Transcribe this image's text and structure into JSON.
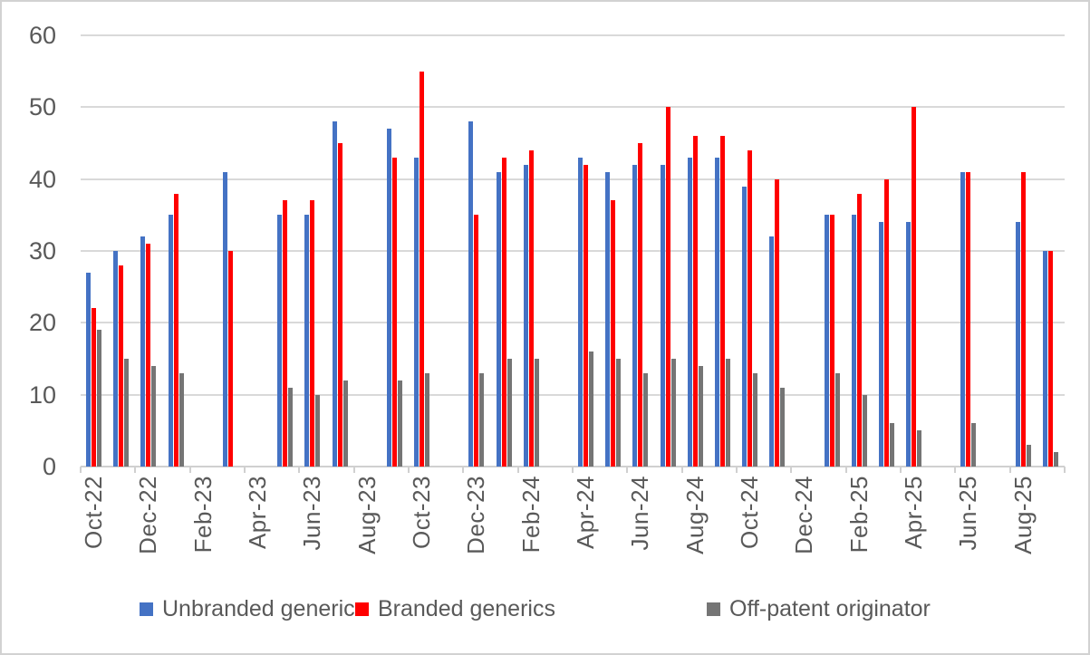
{
  "chart_data": {
    "type": "bar",
    "title": "",
    "grid": true,
    "legend_position": "bottom",
    "y_axis": {
      "min": 0,
      "max": 60,
      "tick_interval": 10,
      "tick_labels": [
        "0",
        "10",
        "20",
        "30",
        "40",
        "50",
        "60"
      ]
    },
    "x_axis": {
      "tick_labels": [
        "Oct-22",
        "Dec-22",
        "Feb-23",
        "Apr-23",
        "Jun-23",
        "Aug-23",
        "Oct-23",
        "Dec-23",
        "Feb-24",
        "Apr-24",
        "Jun-24",
        "Aug-24",
        "Oct-24",
        "Dec-24",
        "Feb-25",
        "Apr-25",
        "Jun-25",
        "Aug-25"
      ]
    },
    "categories": [
      "Oct-22",
      "Nov-22",
      "Dec-22",
      "Jan-23",
      "Feb-23",
      "Mar-23",
      "Apr-23",
      "May-23",
      "Jun-23",
      "Jul-23",
      "Aug-23",
      "Sep-23",
      "Oct-23",
      "Nov-23",
      "Dec-23",
      "Jan-24",
      "Feb-24",
      "Mar-24",
      "Apr-24",
      "May-24",
      "Jun-24",
      "Jul-24",
      "Aug-24",
      "Sep-24",
      "Oct-24",
      "Nov-24",
      "Dec-24",
      "Jan-25",
      "Feb-25",
      "Mar-25",
      "Apr-25",
      "May-25",
      "Jun-25",
      "Jul-25",
      "Aug-25",
      "Sep-25"
    ],
    "series": [
      {
        "name": "Unbranded generics",
        "color": "#4472C4",
        "values": [
          27,
          30,
          32,
          35,
          null,
          41,
          null,
          35,
          35,
          48,
          null,
          47,
          43,
          null,
          48,
          41,
          42,
          null,
          43,
          41,
          42,
          42,
          43,
          43,
          39,
          32,
          null,
          35,
          35,
          34,
          34,
          null,
          41,
          null,
          34,
          30
        ]
      },
      {
        "name": "Branded generics",
        "color": "#FF0000",
        "values": [
          22,
          28,
          31,
          38,
          null,
          30,
          null,
          37,
          37,
          45,
          null,
          43,
          55,
          null,
          35,
          43,
          44,
          null,
          42,
          37,
          45,
          50,
          46,
          46,
          44,
          40,
          null,
          35,
          38,
          40,
          50,
          null,
          41,
          null,
          41,
          30
        ]
      },
      {
        "name": "Off-patent originator",
        "color": "#757575",
        "values": [
          19,
          15,
          14,
          13,
          null,
          null,
          null,
          11,
          10,
          12,
          null,
          12,
          13,
          null,
          13,
          15,
          15,
          null,
          16,
          15,
          13,
          15,
          14,
          15,
          13,
          11,
          null,
          13,
          10,
          6,
          5,
          null,
          6,
          null,
          3,
          2
        ]
      }
    ]
  },
  "colors": {
    "gridline": "#d9d9d9",
    "axis_line": "#d0d0d0",
    "label_text": "#595959",
    "background": "#ffffff"
  }
}
